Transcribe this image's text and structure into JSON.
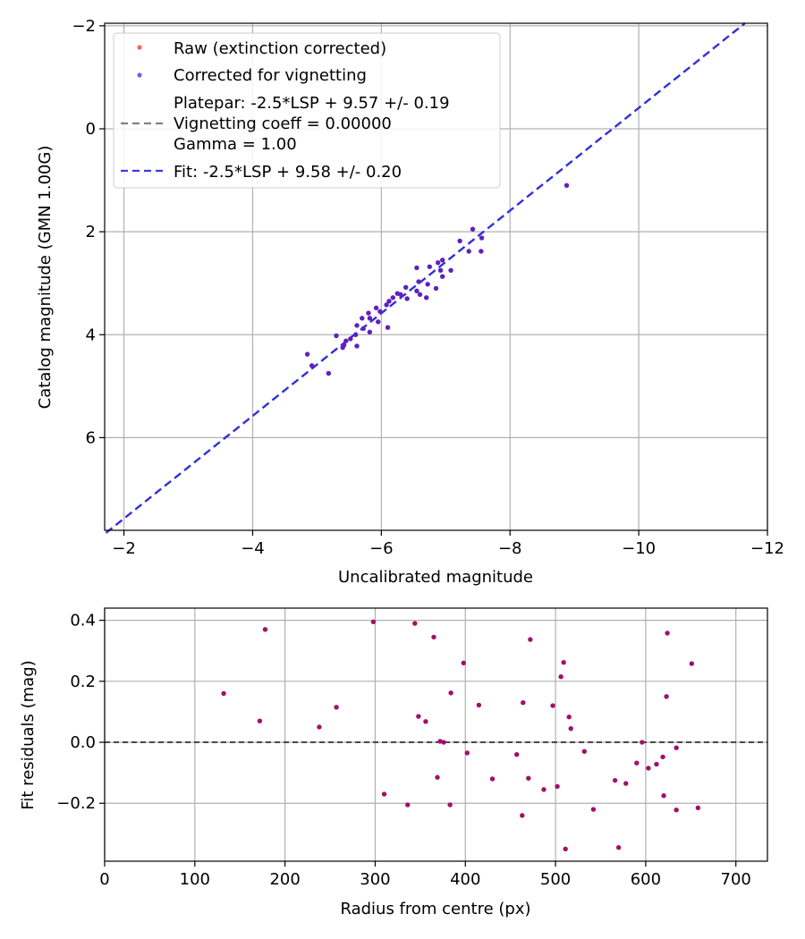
{
  "chart_data": [
    {
      "type": "scatter",
      "xlabel": "Uncalibrated magnitude",
      "ylabel": "Catalog magnitude (GMN 1.00G)",
      "xlim": [
        -1.7,
        -12.0
      ],
      "ylim": [
        7.8,
        -2.05
      ],
      "x_ticks": [
        -2,
        -4,
        -6,
        -8,
        -10,
        -12
      ],
      "x_tick_labels": [
        "−2",
        "−4",
        "−6",
        "−8",
        "−10",
        "−12"
      ],
      "y_ticks": [
        -2,
        0,
        2,
        4,
        6
      ],
      "y_tick_labels": [
        "−2",
        "0",
        "2",
        "4",
        "6"
      ],
      "grid": true,
      "legend_position": "upper-left",
      "legend": [
        {
          "label": "Raw (extinction corrected)",
          "marker": "dot",
          "color": "#ff6666"
        },
        {
          "label": "Corrected for vignetting",
          "marker": "dot",
          "color": "#6666ee"
        },
        {
          "label": "Platepar: -2.5*LSP + 9.57 +/- 0.19",
          "marker": "dash",
          "color": "#808080"
        },
        {
          "label": "Vignetting coeff = 0.00000",
          "marker": "none",
          "color": "#808080"
        },
        {
          "label": "Gamma = 1.00",
          "marker": "none",
          "color": "#808080"
        },
        {
          "label": "Fit: -2.5*LSP + 9.58 +/- 0.20",
          "marker": "dash",
          "color": "#3a3adf"
        }
      ],
      "series": [
        {
          "name": "Fit: -2.5*LSP + 9.58 +/- 0.20",
          "kind": "line",
          "color": "#3030d8",
          "x": [
            -1.72,
            -11.65
          ],
          "y": [
            7.85,
            -2.05
          ]
        },
        {
          "name": "Corrected for vignetting",
          "kind": "scatter",
          "color": "#6020c0",
          "points": [
            [
              -8.88,
              1.1
            ],
            [
              -7.42,
              1.95
            ],
            [
              -7.56,
              2.12
            ],
            [
              -7.22,
              2.18
            ],
            [
              -7.36,
              2.38
            ],
            [
              -7.55,
              2.38
            ],
            [
              -6.95,
              2.55
            ],
            [
              -6.88,
              2.6
            ],
            [
              -6.55,
              2.7
            ],
            [
              -6.75,
              2.68
            ],
            [
              -6.92,
              2.75
            ],
            [
              -7.08,
              2.75
            ],
            [
              -6.95,
              2.87
            ],
            [
              -6.58,
              2.97
            ],
            [
              -6.72,
              3.02
            ],
            [
              -6.85,
              3.1
            ],
            [
              -6.38,
              3.08
            ],
            [
              -6.55,
              3.15
            ],
            [
              -6.25,
              3.2
            ],
            [
              -6.6,
              3.22
            ],
            [
              -6.7,
              3.28
            ],
            [
              -6.18,
              3.28
            ],
            [
              -6.4,
              3.3
            ],
            [
              -6.12,
              3.35
            ],
            [
              -6.3,
              3.22
            ],
            [
              -6.08,
              3.42
            ],
            [
              -5.92,
              3.48
            ],
            [
              -5.98,
              3.55
            ],
            [
              -5.8,
              3.58
            ],
            [
              -5.82,
              3.68
            ],
            [
              -5.7,
              3.68
            ],
            [
              -5.95,
              3.75
            ],
            [
              -5.62,
              3.82
            ],
            [
              -5.72,
              3.88
            ],
            [
              -5.82,
              3.95
            ],
            [
              -6.1,
              3.86
            ],
            [
              -5.6,
              4.0
            ],
            [
              -5.52,
              4.08
            ],
            [
              -5.45,
              4.12
            ],
            [
              -5.3,
              4.02
            ],
            [
              -5.42,
              4.2
            ],
            [
              -5.62,
              4.22
            ],
            [
              -5.4,
              4.25
            ],
            [
              -4.85,
              4.38
            ],
            [
              -4.92,
              4.6
            ],
            [
              -5.18,
              4.75
            ]
          ]
        }
      ]
    },
    {
      "type": "scatter",
      "xlabel": "Radius from centre (px)",
      "ylabel": "Fit residuals (mag)",
      "xlim": [
        0,
        735
      ],
      "ylim": [
        -0.39,
        0.44
      ],
      "x_ticks": [
        0,
        100,
        200,
        300,
        400,
        500,
        600,
        700
      ],
      "x_tick_labels": [
        "0",
        "100",
        "200",
        "300",
        "400",
        "500",
        "600",
        "700"
      ],
      "y_ticks": [
        -0.2,
        0.0,
        0.2,
        0.4
      ],
      "y_tick_labels": [
        "−0.2",
        "0.0",
        "0.2",
        "0.4"
      ],
      "grid": true,
      "zero_line": 0.0,
      "series": [
        {
          "name": "Residuals",
          "kind": "scatter",
          "color": "#a0106a",
          "points": [
            [
              132,
              0.16
            ],
            [
              172,
              0.07
            ],
            [
              178,
              0.37
            ],
            [
              238,
              0.05
            ],
            [
              257,
              0.115
            ],
            [
              298,
              0.395
            ],
            [
              310,
              -0.17
            ],
            [
              336,
              -0.205
            ],
            [
              344,
              0.39
            ],
            [
              348,
              0.085
            ],
            [
              356,
              0.068
            ],
            [
              365,
              0.345
            ],
            [
              369,
              -0.115
            ],
            [
              372,
              0.003
            ],
            [
              376,
              0.0
            ],
            [
              383,
              -0.205
            ],
            [
              384,
              0.162
            ],
            [
              398,
              0.26
            ],
            [
              402,
              -0.035
            ],
            [
              415,
              0.122
            ],
            [
              430,
              -0.12
            ],
            [
              457,
              -0.04
            ],
            [
              463,
              -0.24
            ],
            [
              464,
              0.13
            ],
            [
              470,
              -0.118
            ],
            [
              472,
              0.337
            ],
            [
              487,
              -0.155
            ],
            [
              497,
              0.12
            ],
            [
              502,
              -0.145
            ],
            [
              506,
              0.215
            ],
            [
              509,
              0.262
            ],
            [
              511,
              -0.35
            ],
            [
              515,
              0.083
            ],
            [
              517,
              0.045
            ],
            [
              532,
              -0.03
            ],
            [
              542,
              -0.22
            ],
            [
              566,
              -0.125
            ],
            [
              570,
              -0.345
            ],
            [
              578,
              -0.135
            ],
            [
              590,
              -0.068
            ],
            [
              596,
              0.0
            ],
            [
              603,
              -0.085
            ],
            [
              612,
              -0.072
            ],
            [
              619,
              -0.048
            ],
            [
              620,
              -0.175
            ],
            [
              623,
              0.15
            ],
            [
              624,
              0.358
            ],
            [
              634,
              -0.018
            ],
            [
              634,
              -0.222
            ],
            [
              651,
              0.258
            ],
            [
              658,
              -0.215
            ]
          ]
        }
      ]
    }
  ]
}
